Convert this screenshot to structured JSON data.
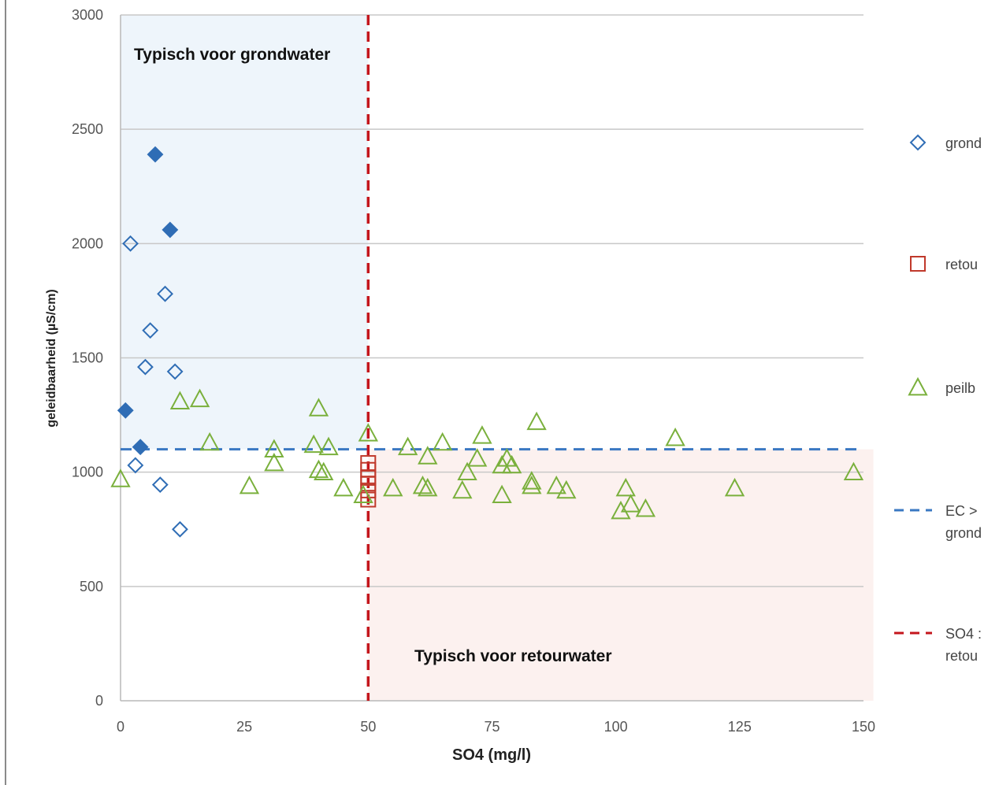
{
  "chart_data": {
    "type": "scatter",
    "title": "",
    "xlabel": "SO4 (mg/l)",
    "ylabel": "geleidbaarheid  (µS/cm)",
    "xlim": [
      0,
      150
    ],
    "ylim": [
      0,
      3000
    ],
    "xticks": [
      "0",
      "25",
      "50",
      "75",
      "100",
      "125",
      "150"
    ],
    "yticks": [
      "0",
      "500",
      "1000",
      "1500",
      "2000",
      "2500",
      "3000"
    ],
    "grid": "horizontal",
    "legend_position": "right",
    "regions": [
      {
        "label": "Typisch voor grondwater",
        "x": [
          0,
          50
        ],
        "y": [
          1100,
          3000
        ],
        "color": "#eef5fb"
      },
      {
        "label": "Typisch voor retourwater",
        "x": [
          50,
          152
        ],
        "y": [
          0,
          1100
        ],
        "color": "#fcf1ef"
      }
    ],
    "reference_lines": [
      {
        "name": "EC > grond",
        "orientation": "horizontal",
        "value": 1100,
        "color": "#3a78c2"
      },
      {
        "name": "SO4 : retou",
        "orientation": "vertical",
        "value": 50,
        "color": "#c4161c"
      }
    ],
    "series": [
      {
        "name": "grond",
        "marker": "diamond",
        "color": "#2f6db5",
        "points": [
          {
            "x": 2,
            "y": 2000,
            "filled": false
          },
          {
            "x": 9,
            "y": 1780,
            "filled": false
          },
          {
            "x": 6,
            "y": 1620,
            "filled": false
          },
          {
            "x": 5,
            "y": 1460,
            "filled": false
          },
          {
            "x": 11,
            "y": 1440,
            "filled": false
          },
          {
            "x": 3,
            "y": 1030,
            "filled": false
          },
          {
            "x": 8,
            "y": 945,
            "filled": false
          },
          {
            "x": 12,
            "y": 750,
            "filled": false
          },
          {
            "x": 7,
            "y": 2390,
            "filled": true
          },
          {
            "x": 10,
            "y": 2060,
            "filled": true
          },
          {
            "x": 1,
            "y": 1270,
            "filled": true
          },
          {
            "x": 4,
            "y": 1110,
            "filled": true
          }
        ]
      },
      {
        "name": "retou",
        "marker": "square",
        "color": "#c0392b",
        "points": [
          {
            "x": 50,
            "y": 1040
          },
          {
            "x": 50,
            "y": 1010
          },
          {
            "x": 50,
            "y": 975
          },
          {
            "x": 50,
            "y": 950
          },
          {
            "x": 50,
            "y": 920
          },
          {
            "x": 50,
            "y": 880
          }
        ]
      },
      {
        "name": "peilb",
        "marker": "triangle",
        "color": "#7ab03c",
        "points": [
          {
            "x": 0,
            "y": 970
          },
          {
            "x": 12,
            "y": 1310
          },
          {
            "x": 16,
            "y": 1320
          },
          {
            "x": 18,
            "y": 1130
          },
          {
            "x": 26,
            "y": 940
          },
          {
            "x": 31,
            "y": 1100
          },
          {
            "x": 31,
            "y": 1040
          },
          {
            "x": 40,
            "y": 1280
          },
          {
            "x": 39,
            "y": 1120
          },
          {
            "x": 40,
            "y": 1010
          },
          {
            "x": 41,
            "y": 1000
          },
          {
            "x": 42,
            "y": 1110
          },
          {
            "x": 45,
            "y": 930
          },
          {
            "x": 49,
            "y": 900
          },
          {
            "x": 50,
            "y": 1170
          },
          {
            "x": 55,
            "y": 930
          },
          {
            "x": 58,
            "y": 1110
          },
          {
            "x": 61,
            "y": 940
          },
          {
            "x": 62,
            "y": 930
          },
          {
            "x": 62,
            "y": 1070
          },
          {
            "x": 65,
            "y": 1130
          },
          {
            "x": 69,
            "y": 920
          },
          {
            "x": 70,
            "y": 1000
          },
          {
            "x": 72,
            "y": 1060
          },
          {
            "x": 73,
            "y": 1160
          },
          {
            "x": 77,
            "y": 1030
          },
          {
            "x": 77,
            "y": 900
          },
          {
            "x": 78,
            "y": 1060
          },
          {
            "x": 79,
            "y": 1030
          },
          {
            "x": 83,
            "y": 960
          },
          {
            "x": 83,
            "y": 940
          },
          {
            "x": 84,
            "y": 1220
          },
          {
            "x": 88,
            "y": 940
          },
          {
            "x": 90,
            "y": 920
          },
          {
            "x": 101,
            "y": 830
          },
          {
            "x": 102,
            "y": 930
          },
          {
            "x": 103,
            "y": 860
          },
          {
            "x": 106,
            "y": 840
          },
          {
            "x": 112,
            "y": 1150
          },
          {
            "x": 124,
            "y": 930
          },
          {
            "x": 148,
            "y": 1000
          }
        ]
      }
    ],
    "legend": [
      {
        "key": "grond",
        "lines": [
          "grond"
        ],
        "marker": "diamond",
        "color": "#2f6db5"
      },
      {
        "key": "retou",
        "lines": [
          "retou"
        ],
        "marker": "square",
        "color": "#c0392b"
      },
      {
        "key": "peilb",
        "lines": [
          "peilb"
        ],
        "marker": "triangle",
        "color": "#7ab03c"
      },
      {
        "key": "ec",
        "lines": [
          "EC >",
          "grond"
        ],
        "marker": "dash",
        "color": "#3a78c2"
      },
      {
        "key": "so4",
        "lines": [
          "SO4 :",
          "retou"
        ],
        "marker": "dash",
        "color": "#c4161c"
      }
    ]
  }
}
